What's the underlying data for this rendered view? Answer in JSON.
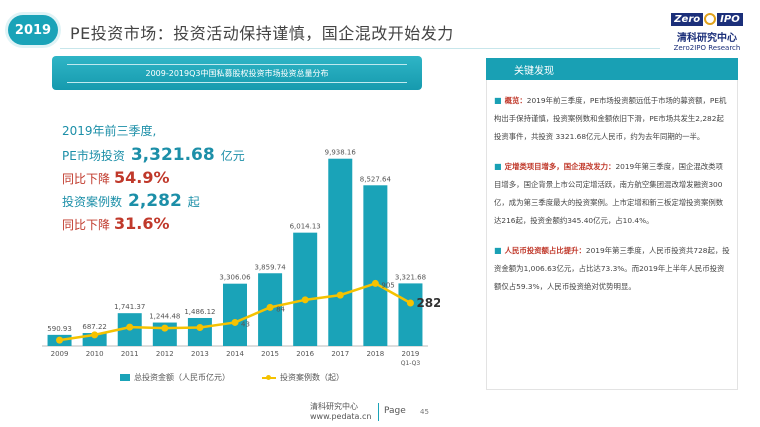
{
  "header": {
    "year_badge": "2019",
    "title": "PE投资市场：投资活动保持谨慎，国企混改开始发力"
  },
  "logo": {
    "mark_left": "Zero",
    "mark_right": "IPO",
    "name_cn": "清科研究中心",
    "name_en": "Zero2IPO Research"
  },
  "chart_banner": "2009-2019Q3中国私募股权投资市场投资总量分布",
  "summary": {
    "heading": "2019年前三季度,",
    "amount_label": "PE市场投资",
    "amount_value": "3,321.68",
    "amount_unit": "亿元",
    "amount_yoy_label": "同比下降",
    "amount_yoy_value": "54.9%",
    "cases_label": "投资案例数",
    "cases_value": "2,282",
    "cases_unit": "起",
    "cases_yoy_label": "同比下降",
    "cases_yoy_value": "31.6%"
  },
  "chart_data": {
    "type": "bar",
    "categories": [
      "2009",
      "2010",
      "2011",
      "2012",
      "2013",
      "2014",
      "2015",
      "2016",
      "2017",
      "2018",
      "2019"
    ],
    "category_sublabels": [
      "",
      "",
      "",
      "",
      "",
      "",
      "",
      "",
      "",
      "",
      "Q1-Q3"
    ],
    "series": [
      {
        "name": "总投资金额（人民币亿元）",
        "kind": "bar",
        "color": "#1aa3b8",
        "values": [
          590.93,
          687.22,
          1741.37,
          1244.48,
          1486.12,
          3306.06,
          3859.74,
          6014.13,
          9938.16,
          8527.64,
          3321.68
        ],
        "labels": [
          "590.93",
          "687.22",
          "1,741.37",
          "1,244.48",
          "1,486.12",
          "3,306.06",
          "3,859.74",
          "6,014.13",
          "9,938.16",
          "8,527.64",
          "3,321.68"
        ]
      },
      {
        "name": "投资案例数（起）",
        "kind": "line",
        "color": "#f5c200",
        "values": [
          310,
          590,
          1000,
          950,
          980,
          1250,
          2050,
          2450,
          2700,
          3320,
          2282
        ],
        "labels": [
          "",
          "",
          "",
          "",
          "",
          "43",
          "84",
          "",
          "",
          "905",
          "282"
        ]
      }
    ],
    "ylim": [
      0,
      10400
    ],
    "grid": false,
    "legend": "bottom"
  },
  "findings": {
    "heading": "关键发现",
    "items": [
      {
        "head": "概览：",
        "text": "2019年前三季度，PE市场投资额远低于市场的募资额，PE机构出手保持谨慎，投资案例数和金额依旧下滑，PE市场共发生2,282起投资事件，共投资 3321.68亿元人民币，约为去年同期的一半。"
      },
      {
        "head": "定增类项目增多，国企混改发力：",
        "text": "2019年第三季度，国企混改类项目增多，国企背景上市公司定增活跃，南方航空集团混改增发融资300亿，成为第三季度最大的投资案例。上市定增和新三板定增投资案例数达216起，投资金额约345.40亿元，占10.4%。"
      },
      {
        "head": "人民币投资额占比提升：",
        "text": "2019年第三季度，人民币投资共728起，投资金额为1,006.63亿元，占比达73.3%。而2019年上半年人民币投资额仅占59.3%，人民币投资绝对优势明显。"
      }
    ]
  },
  "footer": {
    "org": "清科研究中心",
    "url": "www.pedata.cn",
    "page_label": "Page",
    "page_number": "45"
  }
}
